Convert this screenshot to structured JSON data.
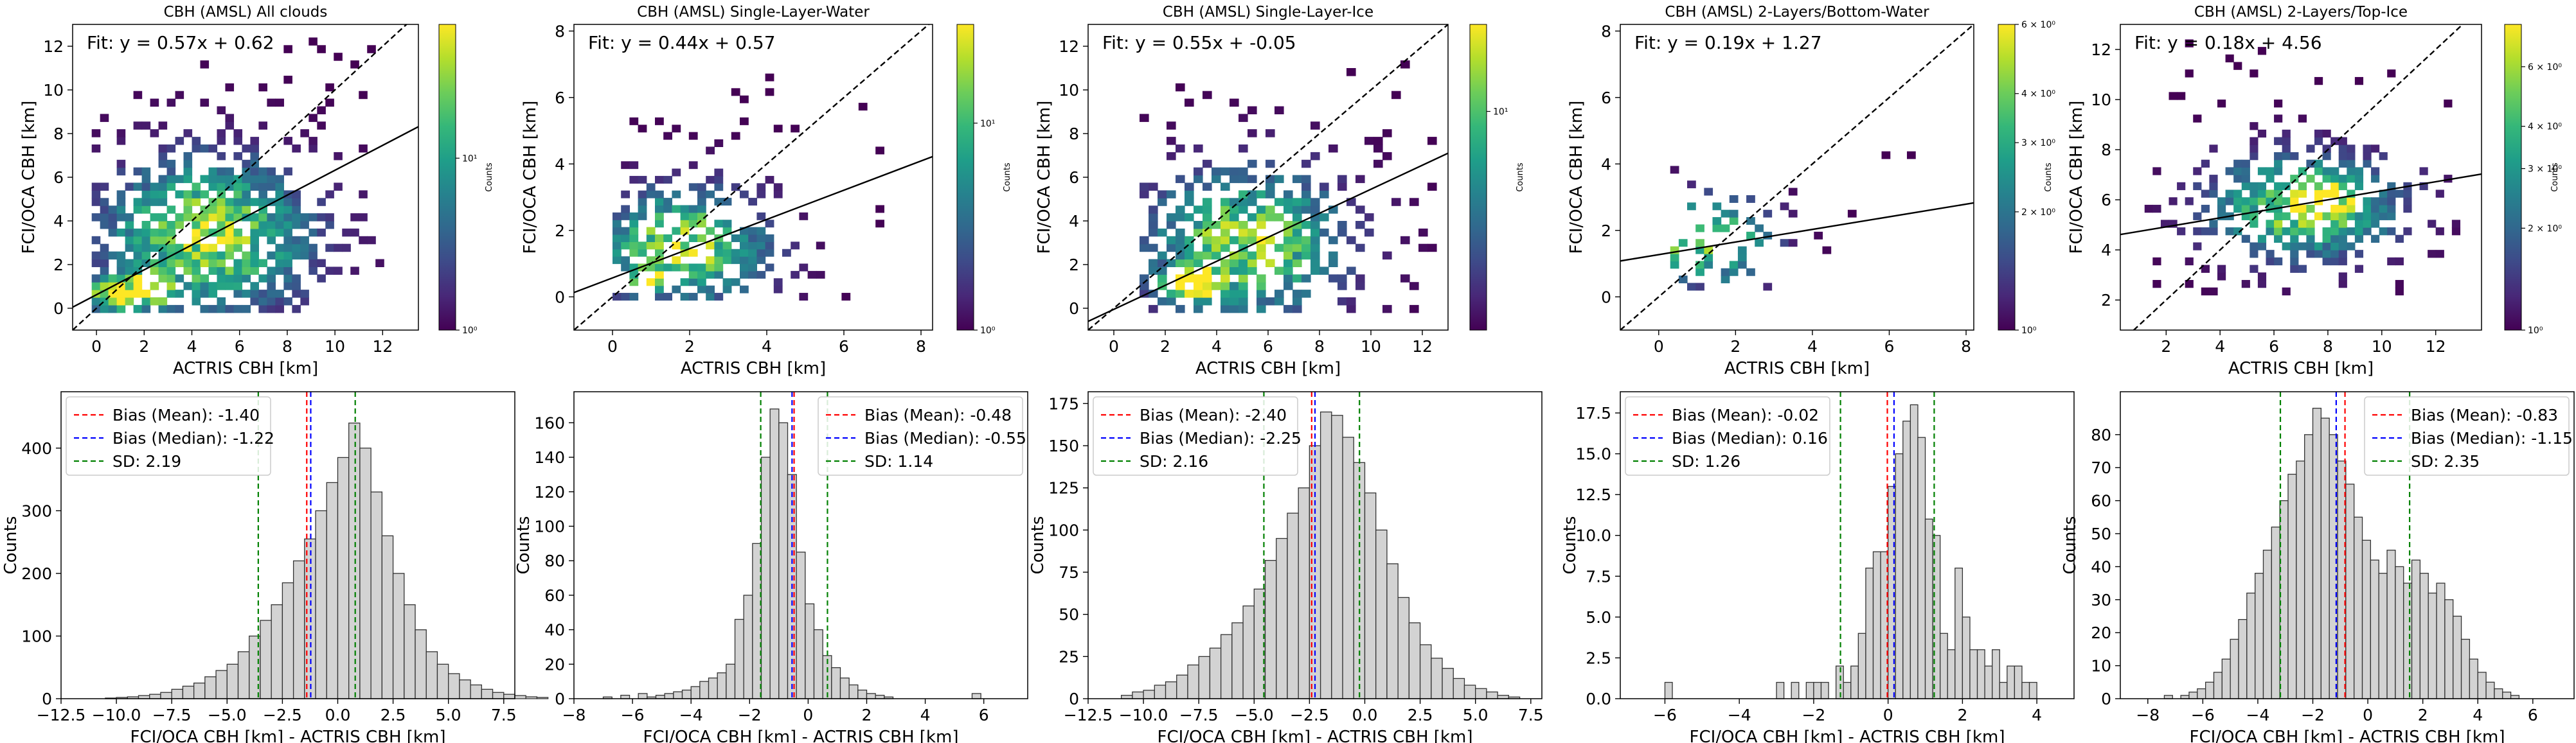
{
  "chart_data": [
    {
      "type": "heatmap",
      "title": "CBH (AMSL) All clouds",
      "xlabel": "ACTRIS CBH [km]",
      "ylabel": "FCI/OCA CBH [km]",
      "xlim": [
        -1,
        13.5
      ],
      "ylim": [
        -1,
        13
      ],
      "xticks": [
        0,
        2,
        4,
        6,
        8,
        10,
        12
      ],
      "yticks": [
        0,
        2,
        4,
        6,
        8,
        10,
        12
      ],
      "fit_label": "Fit: y = 0.57x + 0.62",
      "fit": {
        "slope": 0.57,
        "intercept": 0.62
      },
      "one_to_one_line": true,
      "colorbar": {
        "label": "Counts",
        "scale": "log",
        "ticks": [
          "10⁰",
          "10¹"
        ],
        "vmax": 60
      },
      "colormap": "viridis",
      "cloud": {
        "cx": 4.5,
        "cy": 3.2,
        "sx": 3.0,
        "sy": 2.4,
        "xmin": -0.2,
        "xmax": 12.3,
        "ymin": -0.2,
        "ymax": 12.2,
        "bin": 0.35,
        "hot": [
          [
            1.0,
            0.5,
            1.2,
            0.6
          ],
          [
            2.0,
            0.8,
            1.0,
            0.7
          ]
        ],
        "density": 0.78,
        "seed": 11
      }
    },
    {
      "type": "heatmap",
      "title": "CBH (AMSL) Single-Layer-Water",
      "xlabel": "ACTRIS CBH [km]",
      "ylabel": "FCI/OCA CBH [km]",
      "xlim": [
        -1,
        8.3
      ],
      "ylim": [
        -1,
        8.2
      ],
      "xticks": [
        0,
        2,
        4,
        6,
        8
      ],
      "yticks": [
        0,
        2,
        4,
        6,
        8
      ],
      "fit_label": "Fit: y = 0.44x + 0.57",
      "fit": {
        "slope": 0.44,
        "intercept": 0.57
      },
      "one_to_one_line": true,
      "colorbar": {
        "label": "Counts",
        "scale": "log",
        "ticks": [
          "10⁰",
          "10¹"
        ],
        "vmax": 30
      },
      "colormap": "viridis",
      "cloud": {
        "cx": 1.7,
        "cy": 1.4,
        "sx": 1.5,
        "sy": 1.2,
        "xmin": 0.0,
        "xmax": 7.2,
        "ymin": -0.1,
        "ymax": 6.9,
        "bin": 0.22,
        "hot": [
          [
            1.0,
            0.5,
            0.6,
            0.35
          ]
        ],
        "density": 0.62,
        "seed": 23
      }
    },
    {
      "type": "heatmap",
      "title": "CBH (AMSL) Single-Layer-Ice",
      "xlabel": "ACTRIS CBH [km]",
      "ylabel": "FCI/OCA CBH [km]",
      "xlim": [
        -1,
        13
      ],
      "ylim": [
        -1,
        13
      ],
      "xticks": [
        0,
        2,
        4,
        6,
        8,
        10,
        12
      ],
      "yticks": [
        0,
        2,
        4,
        6,
        8,
        10,
        12
      ],
      "fit_label": "Fit: y = 0.55x + -0.05",
      "fit": {
        "slope": 0.55,
        "intercept": -0.05
      },
      "one_to_one_line": true,
      "colorbar": {
        "label": "Counts",
        "scale": "log",
        "ticks": [
          "10¹"
        ],
        "vmax": 25
      },
      "colormap": "viridis",
      "cloud": {
        "cx": 5.0,
        "cy": 2.8,
        "sx": 2.6,
        "sy": 2.3,
        "xmin": 1.0,
        "xmax": 12.3,
        "ymin": -0.2,
        "ymax": 11.2,
        "bin": 0.35,
        "hot": [
          [
            3.0,
            1.0,
            1.2,
            0.8
          ]
        ],
        "density": 0.66,
        "seed": 37
      }
    },
    {
      "type": "heatmap",
      "title": "CBH (AMSL) 2-Layers/Bottom-Water",
      "xlabel": "ACTRIS CBH [km]",
      "ylabel": "FCI/OCA CBH [km]",
      "xlim": [
        -1,
        8.2
      ],
      "ylim": [
        -1,
        8.2
      ],
      "xticks": [
        0,
        2,
        4,
        6,
        8
      ],
      "yticks": [
        0,
        2,
        4,
        6,
        8
      ],
      "fit_label": "Fit: y = 0.19x + 1.27",
      "fit": {
        "slope": 0.19,
        "intercept": 1.27
      },
      "one_to_one_line": true,
      "colorbar": {
        "label": "Counts",
        "scale": "log",
        "ticks": [
          "10⁰",
          "2 × 10⁰",
          "3 × 10⁰",
          "4 × 10⁰",
          "6 × 10⁰"
        ],
        "tick_values": [
          1,
          2,
          3,
          4,
          6
        ],
        "vmax": 6
      },
      "colormap": "viridis",
      "cloud": {
        "cx": 1.2,
        "cy": 1.6,
        "sx": 1.1,
        "sy": 0.9,
        "xmin": 0.3,
        "xmax": 6.8,
        "ymin": 0.2,
        "ymax": 4.9,
        "bin": 0.22,
        "hot": [
          [
            0.5,
            1.2,
            0.3,
            0.3
          ]
        ],
        "density": 0.3,
        "seed": 41
      }
    },
    {
      "type": "heatmap",
      "title": "CBH (AMSL) 2-Layers/Top-Ice",
      "xlabel": "ACTRIS CBH [km]",
      "ylabel": "FCI/OCA CBH [km]",
      "xlim": [
        0.3,
        13.7
      ],
      "ylim": [
        0.8,
        13
      ],
      "xticks": [
        2,
        4,
        6,
        8,
        10,
        12
      ],
      "yticks": [
        2,
        4,
        6,
        8,
        10,
        12
      ],
      "fit_label": "Fit: y = 0.18x + 4.56",
      "fit": {
        "slope": 0.18,
        "intercept": 4.56
      },
      "one_to_one_line": true,
      "colorbar": {
        "label": "Counts",
        "scale": "log",
        "ticks": [
          "10⁰",
          "2 × 10⁰",
          "3 × 10⁰",
          "4 × 10⁰",
          "6 × 10⁰"
        ],
        "tick_values": [
          1,
          2,
          3,
          4,
          6
        ],
        "vmax": 8
      },
      "colormap": "viridis",
      "cloud": {
        "cx": 7.0,
        "cy": 5.6,
        "sx": 2.4,
        "sy": 1.4,
        "xmin": 1.2,
        "xmax": 12.8,
        "ymin": 2.2,
        "ymax": 12.4,
        "bin": 0.3,
        "hot": [
          [
            7.5,
            5.8,
            1.5,
            0.8
          ]
        ],
        "density": 0.72,
        "seed": 53
      }
    },
    {
      "type": "bar",
      "subtype": "histogram",
      "xlabel": "FCI/OCA CBH [km] - ACTRIS CBH [km]",
      "ylabel": "Counts",
      "xlim": [
        -12.5,
        8
      ],
      "ylim": [
        0,
        490
      ],
      "xticks": [
        -12.5,
        -10.0,
        -7.5,
        -5.0,
        -2.5,
        0.0,
        2.5,
        5.0,
        7.5
      ],
      "xtick_labels": [
        "−12.5",
        "−10.0",
        "−7.5",
        "−5.0",
        "−2.5",
        "0.0",
        "2.5",
        "5.0",
        "7.5"
      ],
      "yticks": [
        0,
        100,
        200,
        300,
        400
      ],
      "bin_start": -10.5,
      "bin_width": 0.5,
      "values": [
        1,
        2,
        3,
        5,
        7,
        10,
        15,
        20,
        25,
        35,
        45,
        55,
        75,
        100,
        125,
        150,
        185,
        220,
        255,
        300,
        345,
        385,
        440,
        400,
        330,
        260,
        200,
        150,
        110,
        75,
        55,
        40,
        30,
        22,
        15,
        10,
        7,
        5,
        3,
        2
      ],
      "lines": [
        {
          "name": "Bias (Mean): -1.40",
          "value": -1.4,
          "color": "#ff0000"
        },
        {
          "name": "Bias (Median): -1.22",
          "value": -1.22,
          "color": "#0000ff"
        },
        {
          "name": "SD: 2.19",
          "value": -3.59,
          "color": "#008000"
        },
        {
          "name": "",
          "value": 0.79,
          "color": "#008000"
        }
      ],
      "legend_loc": "upper left",
      "legend": [
        "Bias (Mean): -1.40",
        "Bias (Median): -1.22",
        "SD: 2.19"
      ]
    },
    {
      "type": "bar",
      "subtype": "histogram",
      "xlabel": "FCI/OCA CBH [km] - ACTRIS CBH [km]",
      "ylabel": "Counts",
      "xlim": [
        -8,
        7.5
      ],
      "ylim": [
        0,
        178
      ],
      "xticks": [
        -8,
        -6,
        -4,
        -2,
        0,
        2,
        4,
        6
      ],
      "xtick_labels": [
        "−8",
        "−6",
        "−4",
        "−2",
        "0",
        "2",
        "4",
        "6"
      ],
      "yticks": [
        0,
        20,
        40,
        60,
        80,
        100,
        120,
        140,
        160
      ],
      "bin_start": -7.0,
      "bin_width": 0.3,
      "values": [
        1,
        0,
        2,
        0,
        3,
        1,
        2,
        3,
        4,
        5,
        7,
        10,
        12,
        15,
        20,
        46,
        60,
        90,
        140,
        168,
        160,
        130,
        85,
        55,
        40,
        25,
        18,
        12,
        8,
        5,
        3,
        2,
        1,
        0,
        0,
        0,
        0,
        0,
        0,
        0,
        0,
        0,
        3,
        0,
        0
      ],
      "lines": [
        {
          "name": "Bias (Mean): -0.48",
          "value": -0.48,
          "color": "#ff0000"
        },
        {
          "name": "Bias (Median): -0.55",
          "value": -0.55,
          "color": "#0000ff"
        },
        {
          "name": "SD: 1.14",
          "value": -1.62,
          "color": "#008000"
        },
        {
          "name": "",
          "value": 0.66,
          "color": "#008000"
        }
      ],
      "legend_loc": "upper right",
      "legend": [
        "Bias (Mean): -0.48",
        "Bias (Median): -0.55",
        "SD: 1.14"
      ]
    },
    {
      "type": "bar",
      "subtype": "histogram",
      "xlabel": "FCI/OCA CBH [km] - ACTRIS CBH [km]",
      "ylabel": "Counts",
      "xlim": [
        -12.5,
        8
      ],
      "ylim": [
        0,
        182
      ],
      "xticks": [
        -12.5,
        -10.0,
        -7.5,
        -5.0,
        -2.5,
        0.0,
        2.5,
        5.0,
        7.5
      ],
      "xtick_labels": [
        "−12.5",
        "−10.0",
        "−7.5",
        "−5.0",
        "−2.5",
        "0.0",
        "2.5",
        "5.0",
        "7.5"
      ],
      "yticks": [
        0,
        25,
        50,
        75,
        100,
        125,
        150,
        175
      ],
      "bin_start": -11.0,
      "bin_width": 0.5,
      "values": [
        2,
        4,
        5,
        8,
        10,
        14,
        20,
        25,
        30,
        38,
        45,
        55,
        65,
        82,
        95,
        110,
        125,
        150,
        170,
        168,
        155,
        140,
        122,
        100,
        80,
        60,
        45,
        32,
        24,
        18,
        12,
        8,
        6,
        4,
        2,
        1
      ],
      "lines": [
        {
          "name": "Bias (Mean): -2.40",
          "value": -2.4,
          "color": "#ff0000"
        },
        {
          "name": "Bias (Median): -2.25",
          "value": -2.25,
          "color": "#0000ff"
        },
        {
          "name": "SD: 2.16",
          "value": -4.56,
          "color": "#008000"
        },
        {
          "name": "",
          "value": -0.24,
          "color": "#008000"
        }
      ],
      "legend_loc": "upper left",
      "legend": [
        "Bias (Mean): -2.40",
        "Bias (Median): -2.25",
        "SD: 2.16"
      ]
    },
    {
      "type": "bar",
      "subtype": "histogram",
      "xlabel": "FCI/OCA CBH [km] - ACTRIS CBH [km]",
      "ylabel": "Counts",
      "xlim": [
        -7.2,
        5
      ],
      "ylim": [
        0,
        18.8
      ],
      "xticks": [
        -6,
        -4,
        -2,
        0,
        2,
        4
      ],
      "xtick_labels": [
        "−6",
        "−4",
        "−2",
        "0",
        "2",
        "4"
      ],
      "yticks": [
        0.0,
        2.5,
        5.0,
        7.5,
        10.0,
        12.5,
        15.0,
        17.5
      ],
      "ytick_labels": [
        "0.0",
        "2.5",
        "5.0",
        "7.5",
        "10.0",
        "12.5",
        "15.0",
        "17.5"
      ],
      "bin_start": -6.0,
      "bin_width": 0.2,
      "values": [
        1,
        0,
        0,
        0,
        0,
        0,
        0,
        0,
        0,
        0,
        0,
        0,
        0,
        0,
        0,
        1,
        0,
        1,
        0,
        1,
        1,
        1,
        0,
        2,
        1,
        2,
        4,
        8,
        9,
        9,
        13,
        15,
        17,
        18,
        16,
        11,
        10,
        4,
        3,
        8,
        5,
        3,
        3,
        2,
        3,
        1,
        2,
        2,
        1,
        1
      ],
      "lines": [
        {
          "name": "Bias (Mean): -0.02",
          "value": -0.02,
          "color": "#ff0000"
        },
        {
          "name": "Bias (Median): 0.16",
          "value": 0.16,
          "color": "#0000ff"
        },
        {
          "name": "SD: 1.26",
          "value": -1.28,
          "color": "#008000"
        },
        {
          "name": "",
          "value": 1.24,
          "color": "#008000"
        }
      ],
      "legend_loc": "upper left",
      "legend": [
        "Bias (Mean): -0.02",
        "Bias (Median): 0.16",
        "SD: 1.26"
      ]
    },
    {
      "type": "bar",
      "subtype": "histogram",
      "xlabel": "FCI/OCA CBH [km] - ACTRIS CBH [km]",
      "ylabel": "Counts",
      "xlim": [
        -9,
        7.5
      ],
      "ylim": [
        0,
        93
      ],
      "xticks": [
        -8,
        -6,
        -4,
        -2,
        0,
        2,
        4,
        6
      ],
      "xtick_labels": [
        "−8",
        "−6",
        "−4",
        "−2",
        "0",
        "2",
        "4",
        "6"
      ],
      "yticks": [
        0,
        10,
        20,
        30,
        40,
        50,
        60,
        70,
        80
      ],
      "bin_start": -7.4,
      "bin_width": 0.3,
      "values": [
        1,
        0,
        1,
        2,
        3,
        5,
        8,
        12,
        18,
        24,
        32,
        38,
        45,
        52,
        60,
        68,
        72,
        80,
        88,
        85,
        80,
        72,
        65,
        55,
        48,
        42,
        38,
        45,
        40,
        35,
        42,
        38,
        32,
        35,
        30,
        25,
        18,
        12,
        8,
        5,
        3,
        2,
        1
      ],
      "lines": [
        {
          "name": "Bias (Mean): -0.83",
          "value": -0.83,
          "color": "#ff0000"
        },
        {
          "name": "Bias (Median): -1.15",
          "value": -1.15,
          "color": "#0000ff"
        },
        {
          "name": "SD: 2.35",
          "value": -3.18,
          "color": "#008000"
        },
        {
          "name": "",
          "value": 1.52,
          "color": "#008000"
        }
      ],
      "legend_loc": "upper right",
      "legend": [
        "Bias (Mean): -0.83",
        "Bias (Median): -1.15",
        "SD: 2.35"
      ]
    }
  ]
}
